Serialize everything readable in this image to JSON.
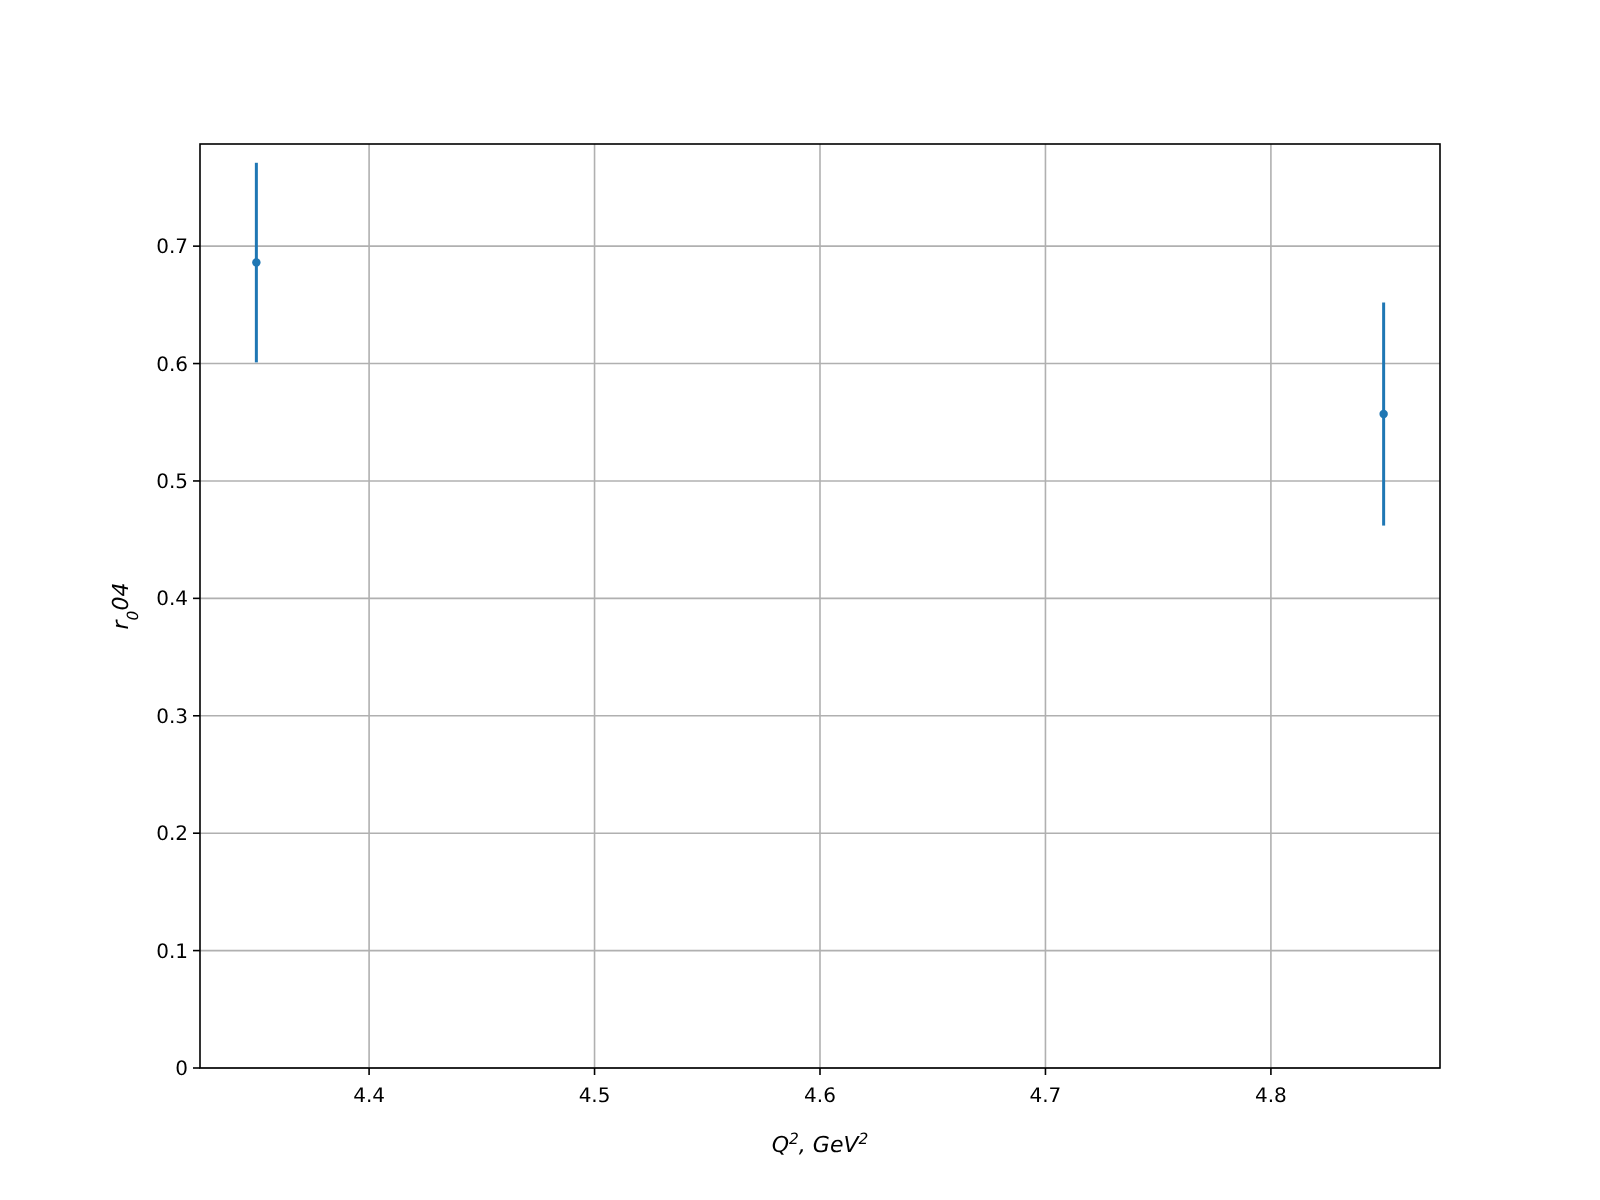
{
  "chart_data": {
    "type": "scatter",
    "xlabel": "Q$^{2}$, GeV$^{2}$",
    "ylabel": "r$_{0}$04",
    "x": [
      4.35,
      4.85
    ],
    "series": [
      {
        "color": "#1f77b4",
        "values": [
          0.686,
          0.557
        ],
        "errors": [
          0.085,
          0.095
        ]
      }
    ],
    "xlim": [
      4.325,
      4.875
    ],
    "xticks": [
      4.4,
      4.5,
      4.6,
      4.7,
      4.8
    ],
    "ylim": [
      0,
      0.787
    ],
    "yticks": [
      0,
      0.1,
      0.2,
      0.3,
      0.4,
      0.5,
      0.6,
      0.7
    ],
    "grid": true,
    "marker": "circle"
  }
}
